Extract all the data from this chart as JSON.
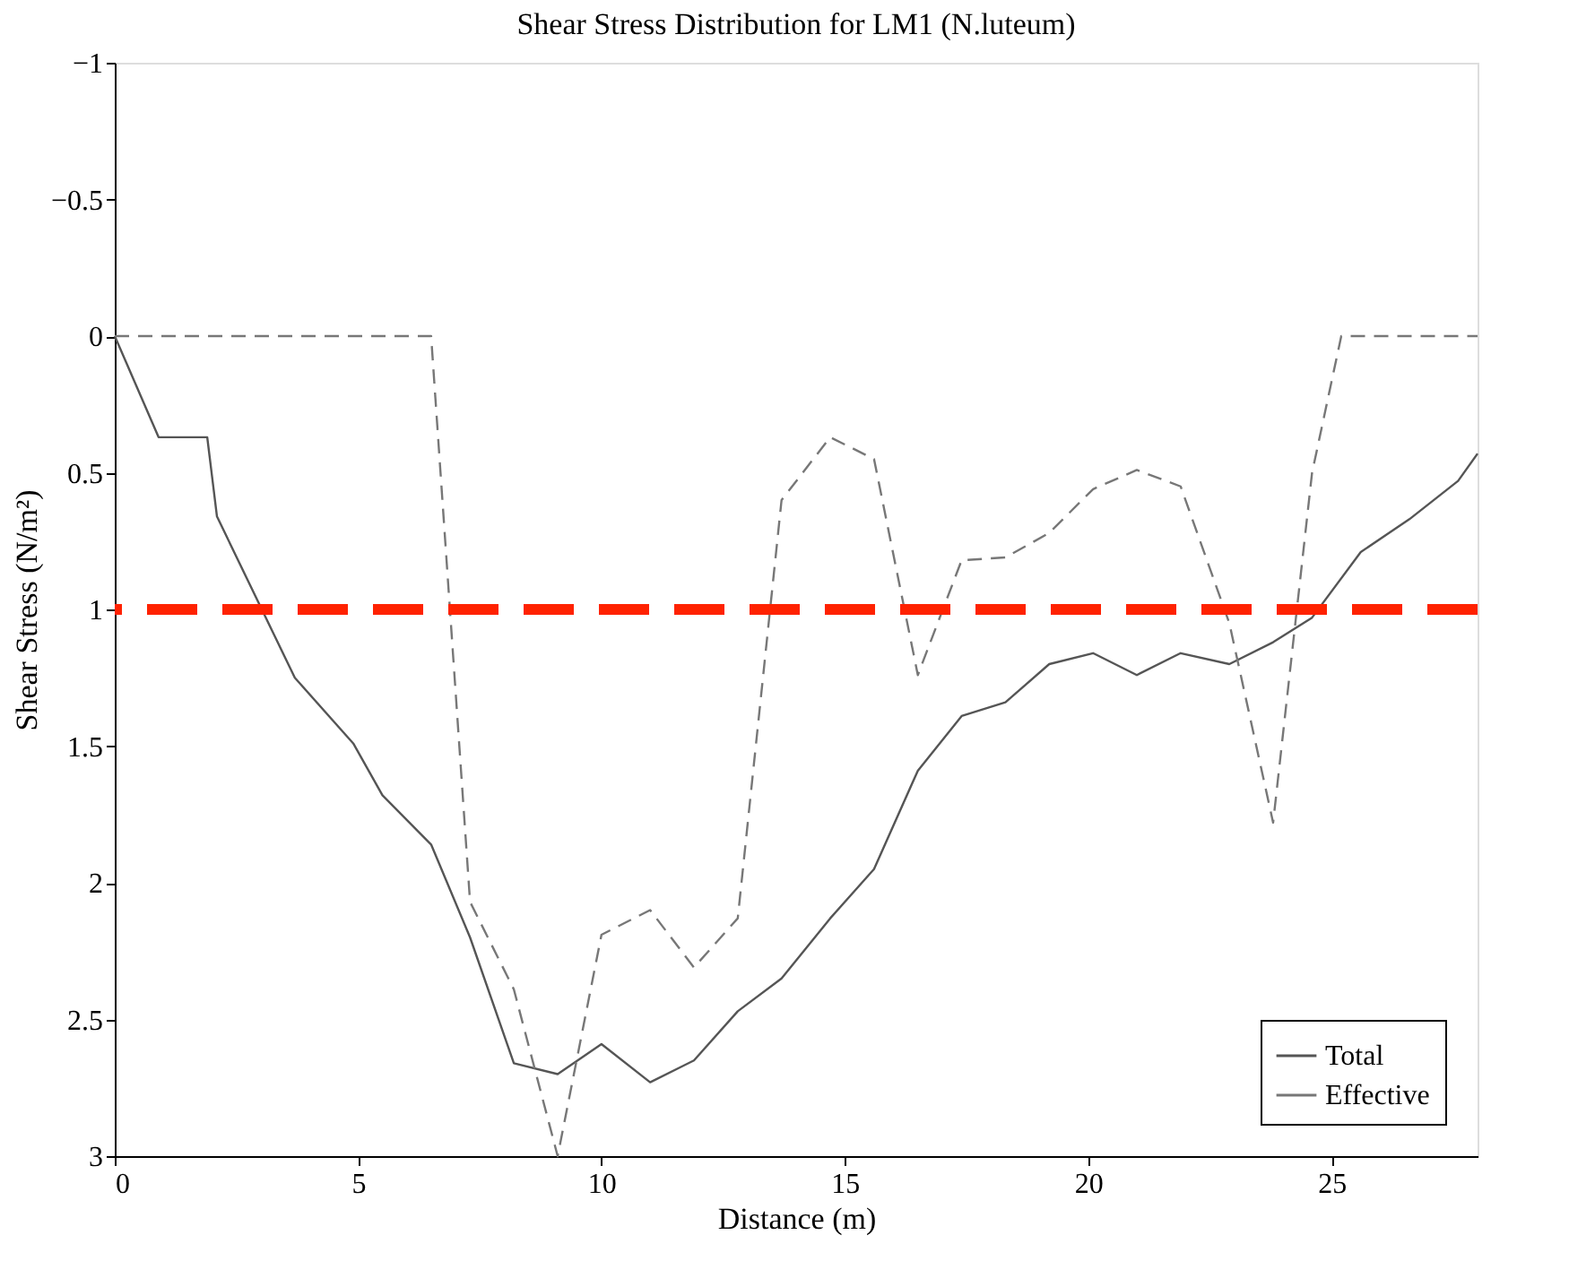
{
  "chart_data": {
    "type": "line",
    "title": "Shear Stress Distribution for LM1 (N.luteum)",
    "xlabel": "Distance (m)",
    "ylabel": "Shear Stress (N/m²)",
    "xlim": [
      0,
      28
    ],
    "xticks": [
      0,
      5,
      10,
      15,
      20,
      25
    ],
    "ylim": [
      3,
      -1
    ],
    "yticks": [
      -1,
      -0.5,
      0,
      0.5,
      1,
      1.5,
      2,
      2.5,
      3
    ],
    "legend": "bottom right",
    "grid": false,
    "series": [
      {
        "name": "Total",
        "color": "#555555",
        "line_style": "solid",
        "x": [
          0,
          0.9,
          1.9,
          2.1,
          3.7,
          4.9,
          5.5,
          6.5,
          7.3,
          8.2,
          9.1,
          10,
          11,
          11.9,
          12.8,
          13.7,
          14.7,
          15.6,
          16.5,
          17.4,
          18.3,
          19.2,
          20.1,
          21,
          21.9,
          22.9,
          23.8,
          24.6,
          25.6,
          26.6,
          27.6,
          28
        ],
        "values": [
          0,
          0.37,
          0.37,
          0.66,
          1.25,
          1.49,
          1.68,
          1.86,
          2.2,
          2.66,
          2.7,
          2.59,
          2.73,
          2.65,
          2.47,
          2.35,
          2.13,
          1.95,
          1.59,
          1.39,
          1.34,
          1.2,
          1.16,
          1.24,
          1.16,
          1.2,
          1.12,
          1.03,
          0.79,
          0.67,
          0.53,
          0.43
        ]
      },
      {
        "name": "Effective",
        "color": "#777777",
        "line_style": "dashed",
        "x": [
          0,
          6.5,
          7.3,
          8.2,
          9.1,
          10,
          11,
          11.9,
          12.8,
          13.7,
          14.7,
          15.6,
          16.5,
          17.4,
          18.3,
          19.2,
          20.1,
          21,
          21.9,
          22.9,
          23.8,
          24.6,
          25.2,
          28
        ],
        "values": [
          0,
          0,
          2.07,
          2.39,
          3.0,
          2.19,
          2.1,
          2.31,
          2.13,
          0.6,
          0.37,
          0.45,
          1.24,
          0.82,
          0.81,
          0.72,
          0.56,
          0.49,
          0.55,
          1.05,
          1.78,
          0.5,
          0,
          0
        ]
      }
    ],
    "ref_lines": [
      {
        "axis": "y",
        "value": 1,
        "color": "#ff2200",
        "line_style": "dashed"
      }
    ]
  }
}
